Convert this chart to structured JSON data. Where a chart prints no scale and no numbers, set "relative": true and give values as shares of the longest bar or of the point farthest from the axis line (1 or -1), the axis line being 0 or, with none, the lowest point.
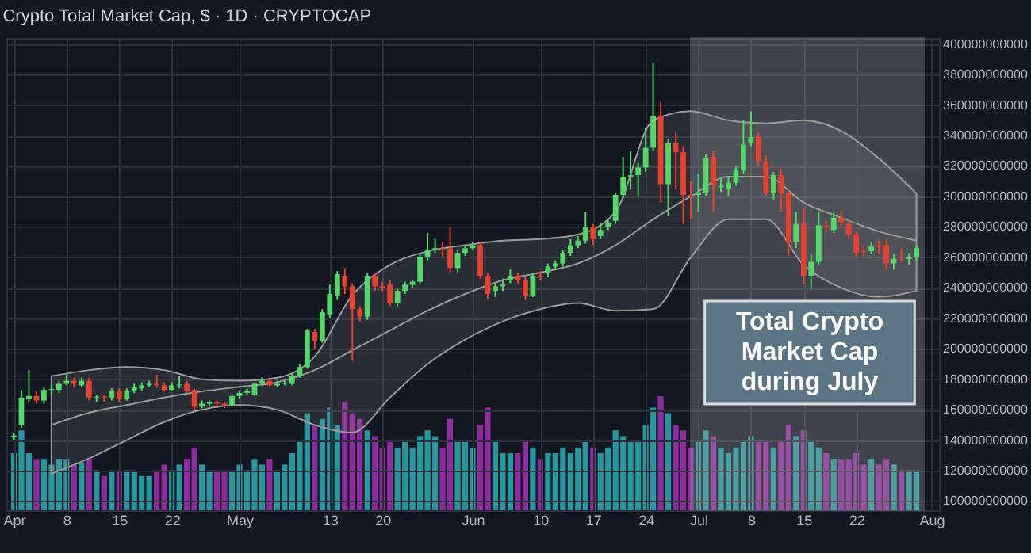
{
  "chart_data": [
    {
      "type": "candlestick",
      "title": "Crypto Total Market Cap, $ · 1D · CRYPTOCAP",
      "x": [
        "--04-01",
        "--04-02",
        "--04-03",
        "--04-04",
        "--04-05",
        "--04-06",
        "--04-07",
        "--04-08",
        "--04-09",
        "--04-10",
        "--04-11",
        "--04-12",
        "--04-13",
        "--04-14",
        "--04-15",
        "--04-16",
        "--04-17",
        "--04-18",
        "--04-19",
        "--04-20",
        "--04-21",
        "--04-22",
        "--04-23",
        "--04-24",
        "--04-25",
        "--04-26",
        "--04-27",
        "--04-28",
        "--04-29",
        "--04-30",
        "--05-01",
        "--05-02",
        "--05-03",
        "--05-04",
        "--05-05",
        "--05-06",
        "--05-07",
        "--05-08",
        "--05-09",
        "--05-10",
        "--05-11",
        "--05-12",
        "--05-13",
        "--05-14",
        "--05-15",
        "--05-16",
        "--05-17",
        "--05-18",
        "--05-19",
        "--05-20",
        "--05-21",
        "--05-22",
        "--05-23",
        "--05-24",
        "--05-25",
        "--05-26",
        "--05-27",
        "--05-28",
        "--05-29",
        "--05-30",
        "--05-31",
        "--06-01",
        "--06-02",
        "--06-03",
        "--06-04",
        "--06-05",
        "--06-06",
        "--06-07",
        "--06-08",
        "--06-09",
        "--06-10",
        "--06-11",
        "--06-12",
        "--06-13",
        "--06-14",
        "--06-15",
        "--06-16",
        "--06-17",
        "--06-18",
        "--06-19",
        "--06-20",
        "--06-21",
        "--06-22",
        "--06-23",
        "--06-24",
        "--06-25",
        "--06-26",
        "--06-27",
        "--06-28",
        "--06-29",
        "--06-30",
        "--07-01",
        "--07-02",
        "--07-03",
        "--07-04",
        "--07-05",
        "--07-06",
        "--07-07",
        "--07-08",
        "--07-09",
        "--07-10",
        "--07-11",
        "--07-12",
        "--07-13",
        "--07-14",
        "--07-15",
        "--07-16",
        "--07-17",
        "--07-18",
        "--07-19",
        "--07-20",
        "--07-21",
        "--07-22",
        "--07-23",
        "--07-24",
        "--07-25",
        "--07-26",
        "--07-27",
        "--07-28",
        "--07-29",
        "--07-30"
      ],
      "ohlc": [
        [
          142000000000.0,
          145000000000.0,
          140000000000.0,
          143000000000.0
        ],
        [
          150000000000.0,
          173000000000.0,
          148000000000.0,
          168000000000.0
        ],
        [
          167000000000.0,
          186000000000.0,
          165000000000.0,
          169000000000.0
        ],
        [
          169000000000.0,
          172000000000.0,
          164000000000.0,
          166000000000.0
        ],
        [
          166000000000.0,
          175000000000.0,
          164000000000.0,
          173000000000.0
        ],
        [
          173000000000.0,
          176000000000.0,
          170000000000.0,
          173500000000.0
        ],
        [
          173000000000.0,
          179000000000.0,
          171000000000.0,
          177000000000.0
        ],
        [
          177000000000.0,
          183000000000.0,
          176000000000.0,
          179000000000.0
        ],
        [
          179000000000.0,
          181000000000.0,
          175000000000.0,
          177000000000.0
        ],
        [
          176000000000.0,
          181000000000.0,
          175000000000.0,
          179000000000.0
        ],
        [
          179000000000.0,
          181000000000.0,
          166000000000.0,
          168000000000.0
        ],
        [
          168000000000.0,
          170000000000.0,
          165000000000.0,
          168500000000.0
        ],
        [
          168500000000.0,
          170000000000.0,
          165000000000.0,
          168000000000.0
        ],
        [
          168000000000.0,
          174000000000.0,
          166000000000.0,
          172000000000.0
        ],
        [
          172000000000.0,
          174000000000.0,
          165000000000.0,
          167000000000.0
        ],
        [
          167000000000.0,
          174000000000.0,
          166000000000.0,
          172000000000.0
        ],
        [
          172000000000.0,
          177000000000.0,
          171000000000.0,
          175000000000.0
        ],
        [
          174000000000.0,
          178000000000.0,
          172000000000.0,
          176000000000.0
        ],
        [
          176000000000.0,
          179000000000.0,
          175000000000.0,
          177000000000.0
        ],
        [
          177000000000.0,
          183000000000.0,
          175000000000.0,
          176000000000.0
        ],
        [
          176000000000.0,
          178000000000.0,
          172000000000.0,
          173000000000.0
        ],
        [
          173000000000.0,
          178000000000.0,
          172000000000.0,
          176000000000.0
        ],
        [
          176000000000.0,
          182000000000.0,
          174000000000.0,
          176500000000.0
        ],
        [
          177000000000.0,
          179000000000.0,
          171000000000.0,
          172000000000.0
        ],
        [
          173000000000.0,
          174000000000.0,
          160000000000.0,
          162000000000.0
        ],
        [
          162000000000.0,
          166000000000.0,
          161000000000.0,
          164000000000.0
        ],
        [
          164000000000.0,
          166000000000.0,
          162000000000.0,
          165000000000.0
        ],
        [
          165000000000.0,
          166000000000.0,
          162000000000.0,
          164000000000.0
        ],
        [
          164000000000.0,
          165000000000.0,
          161000000000.0,
          163000000000.0
        ],
        [
          163000000000.0,
          170000000000.0,
          162000000000.0,
          169000000000.0
        ],
        [
          169000000000.0,
          172000000000.0,
          167000000000.0,
          171000000000.0
        ],
        [
          171000000000.0,
          174000000000.0,
          170000000000.0,
          172000000000.0
        ],
        [
          170000000000.0,
          178000000000.0,
          169000000000.0,
          177000000000.0
        ],
        [
          177000000000.0,
          181000000000.0,
          176000000000.0,
          179000000000.0
        ],
        [
          179000000000.0,
          180000000000.0,
          175000000000.0,
          176000000000.0
        ],
        [
          176000000000.0,
          179000000000.0,
          175000000000.0,
          177000000000.0
        ],
        [
          177000000000.0,
          179000000000.0,
          176000000000.0,
          177500000000.0
        ],
        [
          177000000000.0,
          184000000000.0,
          176000000000.0,
          182000000000.0
        ],
        [
          182000000000.0,
          190000000000.0,
          181000000000.0,
          188000000000.0
        ],
        [
          188000000000.0,
          213000000000.0,
          187000000000.0,
          212000000000.0
        ],
        [
          211000000000.0,
          213000000000.0,
          200000000000.0,
          205000000000.0
        ],
        [
          205000000000.0,
          226000000000.0,
          204000000000.0,
          224000000000.0
        ],
        [
          222000000000.0,
          242000000000.0,
          220000000000.0,
          236000000000.0
        ],
        [
          235000000000.0,
          251000000000.0,
          232000000000.0,
          249000000000.0
        ],
        [
          248000000000.0,
          253000000000.0,
          236000000000.0,
          241000000000.0
        ],
        [
          241000000000.0,
          243000000000.0,
          192000000000.0,
          226000000000.0
        ],
        [
          226000000000.0,
          228000000000.0,
          218000000000.0,
          221000000000.0
        ],
        [
          221000000000.0,
          250000000000.0,
          219000000000.0,
          248000000000.0
        ],
        [
          248000000000.0,
          250000000000.0,
          238000000000.0,
          241000000000.0
        ],
        [
          241000000000.0,
          244000000000.0,
          238000000000.0,
          240000000000.0
        ],
        [
          242000000000.0,
          245000000000.0,
          228000000000.0,
          230000000000.0
        ],
        [
          230000000000.0,
          240000000000.0,
          228000000000.0,
          238000000000.0
        ],
        [
          238000000000.0,
          244000000000.0,
          236000000000.0,
          242000000000.0
        ],
        [
          242000000000.0,
          245000000000.0,
          240000000000.0,
          244000000000.0
        ],
        [
          244000000000.0,
          262000000000.0,
          243000000000.0,
          260000000000.0
        ],
        [
          260000000000.0,
          276000000000.0,
          258000000000.0,
          265000000000.0
        ],
        [
          265000000000.0,
          272000000000.0,
          263000000000.0,
          266000000000.0
        ],
        [
          266000000000.0,
          270000000000.0,
          260000000000.0,
          265500000000.0
        ],
        [
          266000000000.0,
          280000000000.0,
          250000000000.0,
          253000000000.0
        ],
        [
          253000000000.0,
          265000000000.0,
          250000000000.0,
          263000000000.0
        ],
        [
          263000000000.0,
          268000000000.0,
          261000000000.0,
          266000000000.0
        ],
        [
          266000000000.0,
          270000000000.0,
          265000000000.0,
          268000000000.0
        ],
        [
          268000000000.0,
          270000000000.0,
          246000000000.0,
          248000000000.0
        ],
        [
          248000000000.0,
          250000000000.0,
          233000000000.0,
          236000000000.0
        ],
        [
          238000000000.0,
          243000000000.0,
          234000000000.0,
          241000000000.0
        ],
        [
          241000000000.0,
          246000000000.0,
          238000000000.0,
          242000000000.0
        ],
        [
          245000000000.0,
          252000000000.0,
          243000000000.0,
          248000000000.0
        ],
        [
          248000000000.0,
          250000000000.0,
          243000000000.0,
          245000000000.0
        ],
        [
          245000000000.0,
          247000000000.0,
          232000000000.0,
          235000000000.0
        ],
        [
          235000000000.0,
          250000000000.0,
          234000000000.0,
          248000000000.0
        ],
        [
          248000000000.0,
          251000000000.0,
          245000000000.0,
          247000000000.0
        ],
        [
          250000000000.0,
          256000000000.0,
          247000000000.0,
          254000000000.0
        ],
        [
          254000000000.0,
          258000000000.0,
          252000000000.0,
          256000000000.0
        ],
        [
          256000000000.0,
          265000000000.0,
          254000000000.0,
          263000000000.0
        ],
        [
          263000000000.0,
          272000000000.0,
          261000000000.0,
          268000000000.0
        ],
        [
          268000000000.0,
          274000000000.0,
          266000000000.0,
          271000000000.0
        ],
        [
          271000000000.0,
          290000000000.0,
          269000000000.0,
          280000000000.0
        ],
        [
          280000000000.0,
          282000000000.0,
          268000000000.0,
          272000000000.0
        ],
        [
          274000000000.0,
          283000000000.0,
          272000000000.0,
          278000000000.0
        ],
        [
          280000000000.0,
          285000000000.0,
          278000000000.0,
          283000000000.0
        ],
        [
          284000000000.0,
          302000000000.0,
          282000000000.0,
          301000000000.0
        ],
        [
          301000000000.0,
          326000000000.0,
          299000000000.0,
          313000000000.0
        ],
        [
          313000000000.0,
          330000000000.0,
          305000000000.0,
          314000000000.0
        ],
        [
          314000000000.0,
          322000000000.0,
          300000000000.0,
          319000000000.0
        ],
        [
          319000000000.0,
          345000000000.0,
          316000000000.0,
          332000000000.0
        ],
        [
          332000000000.0,
          388000000000.0,
          330000000000.0,
          353000000000.0
        ],
        [
          353000000000.0,
          362000000000.0,
          296000000000.0,
          308000000000.0
        ],
        [
          308000000000.0,
          338000000000.0,
          287000000000.0,
          335000000000.0
        ],
        [
          335000000000.0,
          342000000000.0,
          305000000000.0,
          329000000000.0
        ],
        [
          329000000000.0,
          333000000000.0,
          282000000000.0,
          301000000000.0
        ],
        [
          301000000000.0,
          310000000000.0,
          285000000000.0,
          300000000000.0
        ],
        [
          301000000000.0,
          315000000000.0,
          290000000000.0,
          302000000000.0
        ],
        [
          302000000000.0,
          328000000000.0,
          300000000000.0,
          325000000000.0
        ],
        [
          326000000000.0,
          330000000000.0,
          290000000000.0,
          307000000000.0
        ],
        [
          306000000000.0,
          312000000000.0,
          303000000000.0,
          307000000000.0
        ],
        [
          305000000000.0,
          313000000000.0,
          300000000000.0,
          309000000000.0
        ],
        [
          309000000000.0,
          320000000000.0,
          307000000000.0,
          317000000000.0
        ],
        [
          317000000000.0,
          350000000000.0,
          315000000000.0,
          334000000000.0
        ],
        [
          335000000000.0,
          356000000000.0,
          333000000000.0,
          339000000000.0
        ],
        [
          339000000000.0,
          342000000000.0,
          320000000000.0,
          323000000000.0
        ],
        [
          323000000000.0,
          327000000000.0,
          300000000000.0,
          302000000000.0
        ],
        [
          302000000000.0,
          316000000000.0,
          298000000000.0,
          314000000000.0
        ],
        [
          314000000000.0,
          318000000000.0,
          290000000000.0,
          302000000000.0
        ],
        [
          302000000000.0,
          304000000000.0,
          261000000000.0,
          270000000000.0
        ],
        [
          270000000000.0,
          290000000000.0,
          266000000000.0,
          282000000000.0
        ],
        [
          282000000000.0,
          292000000000.0,
          242000000000.0,
          248000000000.0
        ],
        [
          248000000000.0,
          262000000000.0,
          239000000000.0,
          257000000000.0
        ],
        [
          257000000000.0,
          290000000000.0,
          255000000000.0,
          281000000000.0
        ],
        [
          281000000000.0,
          284000000000.0,
          277000000000.0,
          280000000000.0
        ],
        [
          278000000000.0,
          290000000000.0,
          276000000000.0,
          286000000000.0
        ],
        [
          286000000000.0,
          291000000000.0,
          279000000000.0,
          283000000000.0
        ],
        [
          282000000000.0,
          284000000000.0,
          272000000000.0,
          275000000000.0
        ],
        [
          275000000000.0,
          277000000000.0,
          260000000000.0,
          263000000000.0
        ],
        [
          264000000000.0,
          268000000000.0,
          261000000000.0,
          263500000000.0
        ],
        [
          264000000000.0,
          270000000000.0,
          262000000000.0,
          267000000000.0
        ],
        [
          268000000000.0,
          271000000000.0,
          262000000000.0,
          267000000000.0
        ],
        [
          268000000000.0,
          272000000000.0,
          252000000000.0,
          256000000000.0
        ],
        [
          256000000000.0,
          262000000000.0,
          252000000000.0,
          259000000000.0
        ],
        [
          259000000000.0,
          266000000000.0,
          257000000000.0,
          258500000000.0
        ],
        [
          259000000000.0,
          263000000000.0,
          255000000000.0,
          260000000000.0
        ],
        [
          260000000000.0,
          268000000000.0,
          258000000000.0,
          266000000000.0
        ]
      ],
      "colors": [
        "#53d769",
        "#53d769",
        "#53d769",
        "#e8402f",
        "#53d769",
        "#53d769",
        "#53d769",
        "#53d769",
        "#e8402f",
        "#53d769",
        "#e8402f",
        "#53d769",
        "#e8402f",
        "#53d769",
        "#e8402f",
        "#53d769",
        "#53d769",
        "#53d769",
        "#53d769",
        "#e8402f",
        "#e8402f",
        "#53d769",
        "#53d769",
        "#e8402f",
        "#e8402f",
        "#53d769",
        "#53d769",
        "#e8402f",
        "#e8402f",
        "#53d769",
        "#53d769",
        "#53d769",
        "#53d769",
        "#53d769",
        "#e8402f",
        "#53d769",
        "#53d769",
        "#53d769",
        "#53d769",
        "#53d769",
        "#e8402f",
        "#53d769",
        "#53d769",
        "#53d769",
        "#e8402f",
        "#e8402f",
        "#e8402f",
        "#53d769",
        "#e8402f",
        "#e8402f",
        "#e8402f",
        "#53d769",
        "#53d769",
        "#53d769",
        "#53d769",
        "#53d769",
        "#53d769",
        "#e8402f",
        "#e8402f",
        "#53d769",
        "#53d769",
        "#53d769",
        "#e8402f",
        "#e8402f",
        "#53d769",
        "#53d769",
        "#53d769",
        "#e8402f",
        "#e8402f",
        "#53d769",
        "#e8402f",
        "#53d769",
        "#53d769",
        "#53d769",
        "#53d769",
        "#53d769",
        "#53d769",
        "#e8402f",
        "#53d769",
        "#53d769",
        "#53d769",
        "#53d769",
        "#53d769",
        "#53d769",
        "#53d769",
        "#53d769",
        "#e8402f",
        "#53d769",
        "#e8402f",
        "#e8402f",
        "#e8402f",
        "#53d769",
        "#53d769",
        "#e8402f",
        "#53d769",
        "#53d769",
        "#53d769",
        "#53d769",
        "#53d769",
        "#e8402f",
        "#e8402f",
        "#53d769",
        "#e8402f",
        "#e8402f",
        "#53d769",
        "#e8402f",
        "#53d769",
        "#53d769",
        "#e8402f",
        "#53d769",
        "#e8402f",
        "#e8402f",
        "#e8402f",
        "#e8402f",
        "#53d769",
        "#e8402f",
        "#e8402f",
        "#53d769",
        "#e8402f",
        "#53d769",
        "#53d769"
      ],
      "series": [
        {
          "type": "line",
          "color": "#9a9a9a",
          "x": [
            "--04-06",
            "--04-11",
            "--04-16",
            "--04-21",
            "--04-26",
            "--05-01",
            "--05-06",
            "--05-11",
            "--05-16",
            "--05-21",
            "--05-26",
            "--05-31",
            "--06-05",
            "--06-10",
            "--06-15",
            "--06-20",
            "--06-25",
            "--06-30",
            "--07-05",
            "--07-10",
            "--07-15",
            "--07-20",
            "--07-25",
            "--07-30"
          ],
          "values": [
            150000000000.0,
            158000000000.0,
            163000000000.0,
            168000000000.0,
            172000000000.0,
            175000000000.0,
            178000000000.0,
            186000000000.0,
            199000000000.0,
            212000000000.0,
            225000000000.0,
            236000000000.0,
            245000000000.0,
            250000000000.0,
            256000000000.0,
            268000000000.0,
            285000000000.0,
            300000000000.0,
            313000000000.0,
            313000000000.0,
            296000000000.0,
            286000000000.0,
            277000000000.0,
            271000000000.0
          ],
          "lower": [
            118000000000.0,
            128000000000.0,
            140000000000.0,
            152000000000.0,
            160000000000.0,
            163000000000.0,
            160000000000.0,
            150000000000.0,
            145000000000.0,
            168000000000.0,
            190000000000.0,
            206000000000.0,
            218000000000.0,
            226000000000.0,
            230000000000.0,
            225000000000.0,
            226000000000.0,
            260000000000.0,
            285000000000.0,
            285000000000.0,
            255000000000.0,
            240000000000.0,
            234000000000.0,
            238000000000.0
          ],
          "upper": [
            182000000000.0,
            186000000000.0,
            188000000000.0,
            186000000000.0,
            180000000000.0,
            179000000000.0,
            181000000000.0,
            195000000000.0,
            235000000000.0,
            255000000000.0,
            264000000000.0,
            268000000000.0,
            271000000000.0,
            272000000000.0,
            275000000000.0,
            290000000000.0,
            350000000000.0,
            356000000000.0,
            350000000000.0,
            348000000000.0,
            350000000000.0,
            343000000000.0,
            325000000000.0,
            302000000000.0
          ]
        }
      ],
      "xlim": [
        "--03-31",
        "--08-02"
      ],
      "xticks": [
        {
          "value": "--04-01",
          "label": "Apr"
        },
        {
          "value": "--04-08",
          "label": "8"
        },
        {
          "value": "--04-15",
          "label": "15"
        },
        {
          "value": "--04-22",
          "label": "22"
        },
        {
          "value": "--05-01",
          "label": "May"
        },
        {
          "value": "--05-13",
          "label": "13"
        },
        {
          "value": "--05-20",
          "label": "20"
        },
        {
          "value": "--06-01",
          "label": "Jun"
        },
        {
          "value": "--06-10",
          "label": "10"
        },
        {
          "value": "--06-17",
          "label": "17"
        },
        {
          "value": "--06-24",
          "label": "24"
        },
        {
          "value": "--07-01",
          "label": "Jul"
        },
        {
          "value": "--07-08",
          "label": "8"
        },
        {
          "value": "--07-15",
          "label": "15"
        },
        {
          "value": "--07-22",
          "label": "22"
        },
        {
          "value": "--08-01",
          "label": "Aug"
        }
      ],
      "ylim": [
        94000000000.0,
        404000000000.0
      ],
      "yticks": [
        100000000000,
        120000000000,
        140000000000,
        160000000000,
        180000000000,
        200000000000,
        220000000000,
        240000000000,
        260000000000,
        280000000000,
        300000000000,
        320000000000,
        340000000000,
        360000000000,
        380000000000,
        400000000000
      ],
      "grid": true,
      "bands": [
        {
          "axis": "x",
          "from": "--06-30",
          "to": "--07-31",
          "label": "Total Crypto Market Cap during July",
          "color": "#b4b4b4"
        }
      ]
    },
    {
      "type": "bar",
      "relative": true,
      "tick_labels": false,
      "xlim": [
        "--03-31",
        "--08-02"
      ],
      "x": [
        "--04-01",
        "--04-02",
        "--04-03",
        "--04-04",
        "--04-05",
        "--04-06",
        "--04-07",
        "--04-08",
        "--04-09",
        "--04-10",
        "--04-11",
        "--04-12",
        "--04-13",
        "--04-14",
        "--04-15",
        "--04-16",
        "--04-17",
        "--04-18",
        "--04-19",
        "--04-20",
        "--04-21",
        "--04-22",
        "--04-23",
        "--04-24",
        "--04-25",
        "--04-26",
        "--04-27",
        "--04-28",
        "--04-29",
        "--04-30",
        "--05-01",
        "--05-02",
        "--05-03",
        "--05-04",
        "--05-05",
        "--05-06",
        "--05-07",
        "--05-08",
        "--05-09",
        "--05-10",
        "--05-11",
        "--05-12",
        "--05-13",
        "--05-14",
        "--05-15",
        "--05-16",
        "--05-17",
        "--05-18",
        "--05-19",
        "--05-20",
        "--05-21",
        "--05-22",
        "--05-23",
        "--05-24",
        "--05-25",
        "--05-26",
        "--05-27",
        "--05-28",
        "--05-29",
        "--05-30",
        "--05-31",
        "--06-01",
        "--06-02",
        "--06-03",
        "--06-04",
        "--06-05",
        "--06-06",
        "--06-07",
        "--06-08",
        "--06-09",
        "--06-10",
        "--06-11",
        "--06-12",
        "--06-13",
        "--06-14",
        "--06-15",
        "--06-16",
        "--06-17",
        "--06-18",
        "--06-19",
        "--06-20",
        "--06-21",
        "--06-22",
        "--06-23",
        "--06-24",
        "--06-25",
        "--06-26",
        "--06-27",
        "--06-28",
        "--06-29",
        "--06-30",
        "--07-01",
        "--07-02",
        "--07-03",
        "--07-04",
        "--07-05",
        "--07-06",
        "--07-07",
        "--07-08",
        "--07-09",
        "--07-10",
        "--07-11",
        "--07-12",
        "--07-13",
        "--07-14",
        "--07-15",
        "--07-16",
        "--07-17",
        "--07-18",
        "--07-19",
        "--07-20",
        "--07-21",
        "--07-22",
        "--07-23",
        "--07-24",
        "--07-25",
        "--07-26",
        "--07-27",
        "--07-28",
        "--07-29",
        "--07-30"
      ],
      "values": [
        0.5,
        0.7,
        0.5,
        0.45,
        0.45,
        0.4,
        0.45,
        0.45,
        0.4,
        0.42,
        0.45,
        0.35,
        0.3,
        0.35,
        0.35,
        0.35,
        0.35,
        0.3,
        0.3,
        0.35,
        0.4,
        0.35,
        0.4,
        0.45,
        0.55,
        0.4,
        0.35,
        0.35,
        0.35,
        0.35,
        0.4,
        0.35,
        0.45,
        0.4,
        0.45,
        0.35,
        0.4,
        0.5,
        0.6,
        0.85,
        0.75,
        0.8,
        0.9,
        0.75,
        0.95,
        0.85,
        0.8,
        0.7,
        0.65,
        0.55,
        0.6,
        0.55,
        0.6,
        0.55,
        0.65,
        0.7,
        0.65,
        0.55,
        0.8,
        0.6,
        0.6,
        0.55,
        0.75,
        0.9,
        0.6,
        0.5,
        0.5,
        0.5,
        0.6,
        0.55,
        0.45,
        0.5,
        0.5,
        0.55,
        0.5,
        0.55,
        0.6,
        0.55,
        0.5,
        0.55,
        0.7,
        0.65,
        0.6,
        0.6,
        0.75,
        0.9,
        1,
        0.85,
        0.75,
        0.7,
        0.55,
        0.6,
        0.7,
        0.65,
        0.55,
        0.5,
        0.55,
        0.6,
        0.65,
        0.6,
        0.6,
        0.55,
        0.6,
        0.75,
        0.65,
        0.7,
        0.6,
        0.55,
        0.5,
        0.45,
        0.45,
        0.45,
        0.5,
        0.4,
        0.45,
        0.4,
        0.45,
        0.4,
        0.35,
        0.35,
        0.35
      ],
      "colors": [
        "#26979c",
        "#26979c",
        "#26979c",
        "#8e2b9e",
        "#26979c",
        "#26979c",
        "#26979c",
        "#26979c",
        "#8e2b9e",
        "#26979c",
        "#8e2b9e",
        "#26979c",
        "#8e2b9e",
        "#26979c",
        "#8e2b9e",
        "#26979c",
        "#26979c",
        "#26979c",
        "#26979c",
        "#8e2b9e",
        "#8e2b9e",
        "#26979c",
        "#26979c",
        "#8e2b9e",
        "#8e2b9e",
        "#26979c",
        "#26979c",
        "#8e2b9e",
        "#8e2b9e",
        "#26979c",
        "#26979c",
        "#26979c",
        "#26979c",
        "#26979c",
        "#8e2b9e",
        "#26979c",
        "#26979c",
        "#26979c",
        "#26979c",
        "#26979c",
        "#8e2b9e",
        "#26979c",
        "#26979c",
        "#26979c",
        "#8e2b9e",
        "#8e2b9e",
        "#8e2b9e",
        "#26979c",
        "#8e2b9e",
        "#8e2b9e",
        "#8e2b9e",
        "#26979c",
        "#26979c",
        "#26979c",
        "#26979c",
        "#26979c",
        "#26979c",
        "#8e2b9e",
        "#8e2b9e",
        "#26979c",
        "#26979c",
        "#26979c",
        "#8e2b9e",
        "#8e2b9e",
        "#26979c",
        "#26979c",
        "#26979c",
        "#8e2b9e",
        "#8e2b9e",
        "#26979c",
        "#8e2b9e",
        "#26979c",
        "#26979c",
        "#26979c",
        "#26979c",
        "#26979c",
        "#26979c",
        "#8e2b9e",
        "#26979c",
        "#26979c",
        "#26979c",
        "#26979c",
        "#26979c",
        "#26979c",
        "#26979c",
        "#26979c",
        "#8e2b9e",
        "#26979c",
        "#8e2b9e",
        "#8e2b9e",
        "#8e2b9e",
        "#26979c",
        "#26979c",
        "#8e2b9e",
        "#26979c",
        "#26979c",
        "#26979c",
        "#26979c",
        "#26979c",
        "#8e2b9e",
        "#8e2b9e",
        "#26979c",
        "#8e2b9e",
        "#8e2b9e",
        "#26979c",
        "#8e2b9e",
        "#26979c",
        "#26979c",
        "#8e2b9e",
        "#26979c",
        "#8e2b9e",
        "#8e2b9e",
        "#8e2b9e",
        "#8e2b9e",
        "#26979c",
        "#8e2b9e",
        "#8e2b9e",
        "#26979c",
        "#8e2b9e",
        "#26979c",
        "#26979c"
      ]
    }
  ]
}
